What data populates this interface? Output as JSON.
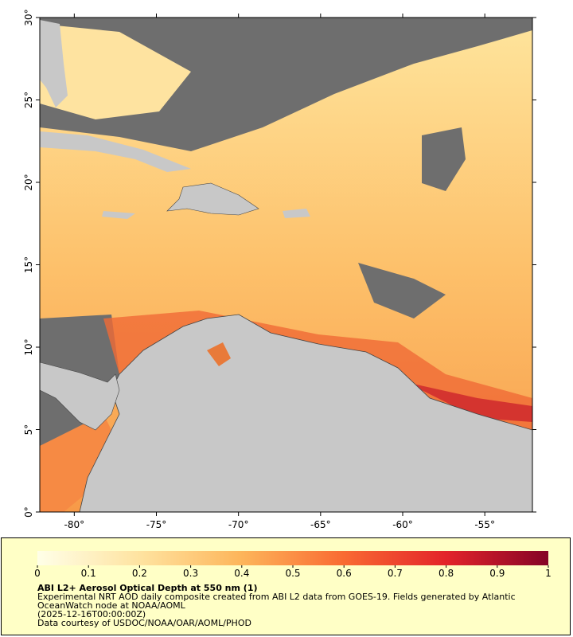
{
  "map": {
    "xlim": [
      -82.1,
      -52.1
    ],
    "ylim": [
      0,
      30
    ],
    "xticks": [
      {
        "value": -80,
        "label": "-80°"
      },
      {
        "value": -75,
        "label": "-75°"
      },
      {
        "value": -70,
        "label": "-70°"
      },
      {
        "value": -65,
        "label": "-65°"
      },
      {
        "value": -60,
        "label": "-60°"
      },
      {
        "value": -55,
        "label": "-55°"
      }
    ],
    "yticks": [
      {
        "value": 0,
        "label": "0°"
      },
      {
        "value": 5,
        "label": "5°"
      },
      {
        "value": 10,
        "label": "10°"
      },
      {
        "value": 15,
        "label": "15°"
      },
      {
        "value": 20,
        "label": "20°"
      },
      {
        "value": 25,
        "label": "25°"
      },
      {
        "value": 30,
        "label": "30°"
      }
    ]
  },
  "colorbar": {
    "lim": [
      0,
      1
    ],
    "ticks": [
      0,
      0.1,
      0.2,
      0.3,
      0.4,
      0.5,
      0.6,
      0.7,
      0.8,
      0.9,
      1
    ]
  },
  "caption": {
    "title": "ABI L2+ Aerosol Optical Depth at 550 nm (1)",
    "description": "Experimental NRT AOD daily composite created from ABI L2 data from GOES-19. Fields generated by Atlantic OceanWatch node at NOAA/AOML",
    "time": "(2025-12-16T00:00:00Z)",
    "credit": "Data courtesy of USDOC/NOAA/OAR/AOML/PHOD"
  }
}
